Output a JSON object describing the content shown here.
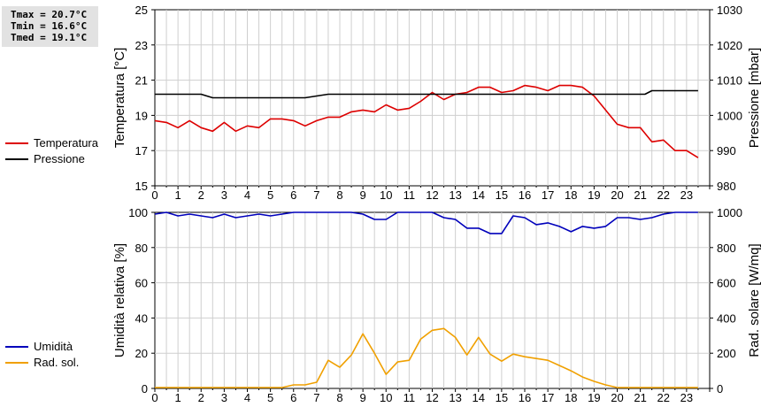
{
  "stats": {
    "tmax": "Tmax = 20.7°C",
    "tmin": "Tmin = 16.6°C",
    "tmed": "Tmed = 19.1°C"
  },
  "legend_top": [
    {
      "label": "Temperatura",
      "color": "#dd0000"
    },
    {
      "label": "Pressione",
      "color": "#000000"
    }
  ],
  "legend_bottom": [
    {
      "label": "Umidità",
      "color": "#0000bb"
    },
    {
      "label": "Rad. sol.",
      "color": "#f0a000"
    }
  ],
  "chart_data": [
    {
      "type": "line",
      "xlabel": "",
      "x_ticks": [
        "0",
        "1",
        "2",
        "3",
        "4",
        "5",
        "6",
        "7",
        "8",
        "9",
        "10",
        "11",
        "12",
        "13",
        "14",
        "15",
        "16",
        "17",
        "18",
        "19",
        "20",
        "21",
        "22",
        "23"
      ],
      "xlim": [
        0,
        24
      ],
      "ylabel_left": "Temperatura [°C]",
      "ylim_left": [
        15,
        25
      ],
      "yticks_left": [
        "15",
        "17",
        "19",
        "21",
        "23",
        "25"
      ],
      "ylabel_right": "Pressione [mbar]",
      "ylim_right": [
        980,
        1030
      ],
      "yticks_right": [
        "980",
        "990",
        "1000",
        "1010",
        "1020",
        "1030"
      ],
      "grid": true,
      "series": [
        {
          "name": "Temperatura",
          "axis": "left",
          "color": "#dd0000",
          "x": [
            0,
            0.5,
            1,
            1.5,
            2,
            2.5,
            3,
            3.5,
            4,
            4.5,
            5,
            5.5,
            6,
            6.5,
            7,
            7.5,
            8,
            8.5,
            9,
            9.5,
            10,
            10.5,
            11,
            11.5,
            12,
            12.5,
            13,
            13.5,
            14,
            14.5,
            15,
            15.5,
            16,
            16.5,
            17,
            17.5,
            18,
            18.5,
            19,
            19.5,
            20,
            20.5,
            21,
            21.5,
            22,
            22.5,
            23,
            23.5
          ],
          "y": [
            18.7,
            18.6,
            18.3,
            18.7,
            18.3,
            18.1,
            18.6,
            18.1,
            18.4,
            18.3,
            18.8,
            18.8,
            18.7,
            18.4,
            18.7,
            18.9,
            18.9,
            19.2,
            19.3,
            19.2,
            19.6,
            19.3,
            19.4,
            19.8,
            20.3,
            19.9,
            20.2,
            20.3,
            20.6,
            20.6,
            20.3,
            20.4,
            20.7,
            20.6,
            20.4,
            20.7,
            20.7,
            20.6,
            20.1,
            19.3,
            18.5,
            18.3,
            18.3,
            17.5,
            17.6,
            17.0,
            17.0,
            16.6
          ]
        },
        {
          "name": "Pressione",
          "axis": "right",
          "color": "#000000",
          "x": [
            0,
            2,
            2.5,
            6.5,
            7.5,
            21.2,
            21.5,
            23.5
          ],
          "y": [
            1006,
            1006,
            1005,
            1005,
            1006,
            1006,
            1007,
            1007
          ]
        }
      ]
    },
    {
      "type": "line",
      "xlabel": "",
      "x_ticks": [
        "0",
        "1",
        "2",
        "3",
        "4",
        "5",
        "6",
        "7",
        "8",
        "9",
        "10",
        "11",
        "12",
        "13",
        "14",
        "15",
        "16",
        "17",
        "18",
        "19",
        "20",
        "21",
        "22",
        "23"
      ],
      "xlim": [
        0,
        24
      ],
      "ylabel_left": "Umidità relativa [%]",
      "ylim_left": [
        0,
        100
      ],
      "yticks_left": [
        "0",
        "20",
        "40",
        "60",
        "80",
        "100"
      ],
      "ylabel_right": "Rad. solare [W/mq]",
      "ylim_right": [
        0,
        1000
      ],
      "yticks_right": [
        "0",
        "200",
        "400",
        "600",
        "800",
        "1000"
      ],
      "grid": true,
      "series": [
        {
          "name": "Umidità",
          "axis": "left",
          "color": "#0000bb",
          "x": [
            0,
            0.5,
            1,
            1.5,
            2,
            2.5,
            3,
            3.5,
            4,
            4.5,
            5,
            5.5,
            6,
            6.5,
            7,
            7.5,
            8,
            8.5,
            9,
            9.5,
            10,
            10.5,
            11,
            11.5,
            12,
            12.5,
            13,
            13.5,
            14,
            14.5,
            15,
            15.5,
            16,
            16.5,
            17,
            17.5,
            18,
            18.5,
            19,
            19.5,
            20,
            20.5,
            21,
            21.5,
            22,
            22.5,
            23,
            23.5
          ],
          "y": [
            99,
            100,
            98,
            99,
            98,
            97,
            99,
            97,
            98,
            99,
            98,
            99,
            100,
            100,
            100,
            100,
            100,
            100,
            99,
            96,
            96,
            100,
            100,
            100,
            100,
            97,
            96,
            91,
            91,
            88,
            88,
            98,
            97,
            93,
            94,
            92,
            89,
            92,
            91,
            92,
            97,
            97,
            96,
            97,
            99,
            100,
            100,
            100
          ]
        },
        {
          "name": "Rad. sol.",
          "axis": "right",
          "color": "#f0a000",
          "x": [
            0,
            1,
            2,
            3,
            4,
            5,
            5.5,
            6,
            6.5,
            7,
            7.5,
            8,
            8.5,
            9,
            9.5,
            10,
            10.5,
            11,
            11.5,
            12,
            12.5,
            13,
            13.5,
            14,
            14.5,
            15,
            15.5,
            16,
            16.5,
            17,
            17.5,
            18,
            18.5,
            19,
            19.5,
            20,
            21,
            22,
            23,
            23.5
          ],
          "y": [
            5,
            5,
            5,
            5,
            5,
            5,
            5,
            20,
            20,
            35,
            160,
            120,
            190,
            310,
            200,
            80,
            150,
            160,
            280,
            330,
            340,
            290,
            190,
            290,
            195,
            155,
            195,
            180,
            170,
            160,
            130,
            100,
            65,
            40,
            20,
            5,
            5,
            5,
            5,
            5
          ]
        }
      ]
    }
  ]
}
